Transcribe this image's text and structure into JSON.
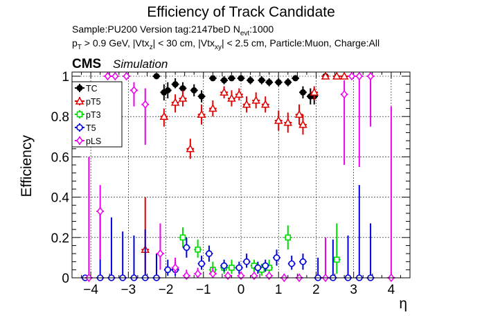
{
  "header": {
    "title": "Efficiency of Track Candidate",
    "line1_prefix": "Sample:PU200   Version tag:2147beD  N",
    "line1_sub": "evt",
    "line1_suffix": ":1000",
    "line2": {
      "p": "p",
      "T": "T",
      "a": " > 0.9 GeV, |Vtx",
      "z": "z",
      "b": "| < 30 cm, |Vtx",
      "xy": "xy",
      "c": "| < 2.5 cm, Particle:Muon, Charge:All"
    }
  },
  "cms": {
    "label": "CMS",
    "sublabel": "Simulation"
  },
  "chart_data": {
    "type": "scatter",
    "title": "Efficiency of Track Candidate",
    "xlabel": "η",
    "ylabel": "Efficiency",
    "xlim": [
      -4.5,
      4.5
    ],
    "ylim": [
      0,
      1.02
    ],
    "x_ticks": [
      -4,
      -3,
      -2,
      -1,
      0,
      1,
      2,
      3,
      4
    ],
    "x_tick_labels": [
      "−4",
      "−3",
      "−2",
      "−1",
      "0",
      "1",
      "2",
      "3",
      "4"
    ],
    "y_ticks": [
      0,
      0.2,
      0.4,
      0.6,
      0.8,
      1
    ],
    "y_tick_labels": [
      "0",
      "0.2",
      "0.4",
      "0.6",
      "0.8",
      "1"
    ],
    "grid": true,
    "legend_position": "top-left",
    "series": [
      {
        "name": "TC",
        "color": "#000000",
        "marker": "circle-filled",
        "points": [
          {
            "x": -2.25,
            "y": 1.0,
            "elo": 0.0,
            "ehi": 0.0
          },
          {
            "x": -2.05,
            "y": 0.92,
            "elo": 0.04,
            "ehi": 0.04
          },
          {
            "x": -1.95,
            "y": 0.93,
            "elo": 0.04,
            "ehi": 0.04
          },
          {
            "x": -1.75,
            "y": 0.96,
            "elo": 0.02,
            "ehi": 0.03
          },
          {
            "x": -1.55,
            "y": 0.94,
            "elo": 0.03,
            "ehi": 0.03
          },
          {
            "x": -1.25,
            "y": 0.93,
            "elo": 0.03,
            "ehi": 0.03
          },
          {
            "x": -1.05,
            "y": 0.9,
            "elo": 0.03,
            "ehi": 0.03
          },
          {
            "x": -0.75,
            "y": 0.99,
            "elo": 0.01,
            "ehi": 0.01
          },
          {
            "x": -0.45,
            "y": 0.98,
            "elo": 0.02,
            "ehi": 0.02
          },
          {
            "x": -0.25,
            "y": 0.99,
            "elo": 0.01,
            "ehi": 0.01
          },
          {
            "x": 0.0,
            "y": 0.99,
            "elo": 0.01,
            "ehi": 0.01
          },
          {
            "x": 0.25,
            "y": 0.98,
            "elo": 0.02,
            "ehi": 0.02
          },
          {
            "x": 0.55,
            "y": 0.98,
            "elo": 0.02,
            "ehi": 0.02
          },
          {
            "x": 0.75,
            "y": 0.97,
            "elo": 0.02,
            "ehi": 0.02
          },
          {
            "x": 1.0,
            "y": 0.97,
            "elo": 0.02,
            "ehi": 0.02
          },
          {
            "x": 1.25,
            "y": 0.97,
            "elo": 0.02,
            "ehi": 0.02
          },
          {
            "x": 1.45,
            "y": 0.99,
            "elo": 0.01,
            "ehi": 0.01
          },
          {
            "x": 1.65,
            "y": 0.92,
            "elo": 0.03,
            "ehi": 0.03
          },
          {
            "x": 1.85,
            "y": 0.9,
            "elo": 0.04,
            "ehi": 0.04
          },
          {
            "x": 1.95,
            "y": 0.9,
            "elo": 0.04,
            "ehi": 0.04
          },
          {
            "x": 2.25,
            "y": 1.0,
            "elo": 0.0,
            "ehi": 0.0
          }
        ]
      },
      {
        "name": "pT5",
        "color": "#e00000",
        "marker": "triangle-open",
        "points": [
          {
            "x": -2.55,
            "y": 0.14,
            "elo": 0.12,
            "ehi": 0.26
          },
          {
            "x": -2.05,
            "y": 0.8,
            "elo": 0.05,
            "ehi": 0.04
          },
          {
            "x": -1.75,
            "y": 0.87,
            "elo": 0.05,
            "ehi": 0.04
          },
          {
            "x": -1.55,
            "y": 0.89,
            "elo": 0.04,
            "ehi": 0.04
          },
          {
            "x": -1.35,
            "y": 0.64,
            "elo": 0.05,
            "ehi": 0.05
          },
          {
            "x": -1.05,
            "y": 0.81,
            "elo": 0.05,
            "ehi": 0.05
          },
          {
            "x": -0.75,
            "y": 0.84,
            "elo": 0.04,
            "ehi": 0.04
          },
          {
            "x": -0.45,
            "y": 0.92,
            "elo": 0.03,
            "ehi": 0.03
          },
          {
            "x": -0.25,
            "y": 0.89,
            "elo": 0.04,
            "ehi": 0.04
          },
          {
            "x": -0.05,
            "y": 0.91,
            "elo": 0.03,
            "ehi": 0.03
          },
          {
            "x": 0.15,
            "y": 0.86,
            "elo": 0.04,
            "ehi": 0.04
          },
          {
            "x": 0.4,
            "y": 0.88,
            "elo": 0.04,
            "ehi": 0.04
          },
          {
            "x": 0.65,
            "y": 0.86,
            "elo": 0.04,
            "ehi": 0.04
          },
          {
            "x": 1.0,
            "y": 0.78,
            "elo": 0.05,
            "ehi": 0.05
          },
          {
            "x": 1.25,
            "y": 0.77,
            "elo": 0.05,
            "ehi": 0.05
          },
          {
            "x": 1.55,
            "y": 0.81,
            "elo": 0.05,
            "ehi": 0.05
          },
          {
            "x": 1.65,
            "y": 0.76,
            "elo": 0.05,
            "ehi": 0.05
          },
          {
            "x": 1.95,
            "y": 0.92,
            "elo": 0.04,
            "ehi": 0.03
          },
          {
            "x": 2.25,
            "y": 1.0,
            "elo": 0.0,
            "ehi": 0.0
          },
          {
            "x": 2.55,
            "y": 1.0,
            "elo": 0.0,
            "ehi": 0.0
          },
          {
            "x": 2.75,
            "y": 1.0,
            "elo": 0.0,
            "ehi": 0.0
          }
        ]
      },
      {
        "name": "pT3",
        "color": "#00dd00",
        "marker": "square-open",
        "points": [
          {
            "x": -1.55,
            "y": 0.2,
            "elo": 0.05,
            "ehi": 0.05
          },
          {
            "x": -1.15,
            "y": 0.14,
            "elo": 0.04,
            "ehi": 0.05
          },
          {
            "x": -0.75,
            "y": 0.04,
            "elo": 0.03,
            "ehi": 0.04
          },
          {
            "x": -0.45,
            "y": 0.05,
            "elo": 0.03,
            "ehi": 0.03
          },
          {
            "x": -0.25,
            "y": 0.05,
            "elo": 0.03,
            "ehi": 0.04
          },
          {
            "x": 0.35,
            "y": 0.06,
            "elo": 0.03,
            "ehi": 0.03
          },
          {
            "x": 0.55,
            "y": 0.04,
            "elo": 0.03,
            "ehi": 0.03
          },
          {
            "x": 0.75,
            "y": 0.05,
            "elo": 0.03,
            "ehi": 0.04
          },
          {
            "x": 1.25,
            "y": 0.2,
            "elo": 0.06,
            "ehi": 0.06
          },
          {
            "x": 2.55,
            "y": 0.09,
            "elo": 0.07,
            "ehi": 0.18
          }
        ]
      },
      {
        "name": "T5",
        "color": "#0000dd",
        "marker": "circle-open",
        "points": [
          {
            "x": -4.15,
            "y": 0.0,
            "elo": 0.0,
            "ehi": 0.0
          },
          {
            "x": -3.75,
            "y": 0.0,
            "elo": 0.0,
            "ehi": 0.35
          },
          {
            "x": -3.45,
            "y": 0.0,
            "elo": 0.0,
            "ehi": 0.3
          },
          {
            "x": -3.15,
            "y": 0.0,
            "elo": 0.0,
            "ehi": 0.23
          },
          {
            "x": -2.85,
            "y": 0.0,
            "elo": 0.0,
            "ehi": 0.21
          },
          {
            "x": -2.55,
            "y": 0.0,
            "elo": 0.0,
            "ehi": 0.24
          },
          {
            "x": -2.25,
            "y": 0.0,
            "elo": 0.0,
            "ehi": 0.12
          },
          {
            "x": -1.95,
            "y": 0.04,
            "elo": 0.03,
            "ehi": 0.05
          },
          {
            "x": -1.75,
            "y": 0.04,
            "elo": 0.03,
            "ehi": 0.04
          },
          {
            "x": -1.45,
            "y": 0.15,
            "elo": 0.05,
            "ehi": 0.05
          },
          {
            "x": -1.05,
            "y": 0.07,
            "elo": 0.03,
            "ehi": 0.04
          },
          {
            "x": -0.85,
            "y": 0.12,
            "elo": 0.04,
            "ehi": 0.04
          },
          {
            "x": -0.45,
            "y": 0.06,
            "elo": 0.03,
            "ehi": 0.03
          },
          {
            "x": -0.05,
            "y": 0.05,
            "elo": 0.03,
            "ehi": 0.03
          },
          {
            "x": 0.15,
            "y": 0.08,
            "elo": 0.03,
            "ehi": 0.04
          },
          {
            "x": 0.45,
            "y": 0.05,
            "elo": 0.03,
            "ehi": 0.03
          },
          {
            "x": 0.65,
            "y": 0.06,
            "elo": 0.03,
            "ehi": 0.03
          },
          {
            "x": 0.95,
            "y": 0.1,
            "elo": 0.04,
            "ehi": 0.04
          },
          {
            "x": 1.35,
            "y": 0.07,
            "elo": 0.03,
            "ehi": 0.04
          },
          {
            "x": 1.65,
            "y": 0.08,
            "elo": 0.04,
            "ehi": 0.04
          },
          {
            "x": 2.05,
            "y": 0.0,
            "elo": 0.0,
            "ehi": 0.1
          },
          {
            "x": 2.45,
            "y": 0.0,
            "elo": 0.0,
            "ehi": 0.19
          },
          {
            "x": 2.85,
            "y": 0.0,
            "elo": 0.0,
            "ehi": 0.21
          },
          {
            "x": 3.15,
            "y": 0.0,
            "elo": 0.0,
            "ehi": 0.46
          },
          {
            "x": 3.45,
            "y": 0.0,
            "elo": 0.0,
            "ehi": 0.27
          }
        ]
      },
      {
        "name": "pLS",
        "color": "#ee00ee",
        "marker": "diamond-open",
        "points": [
          {
            "x": -4.05,
            "y": 0.0,
            "elo": 0.0,
            "ehi": 0.6
          },
          {
            "x": -3.75,
            "y": 0.33,
            "elo": 0.24,
            "ehi": 0.13
          },
          {
            "x": -3.55,
            "y": 1.0,
            "elo": 0.0,
            "ehi": 0.0
          },
          {
            "x": -3.35,
            "y": 1.0,
            "elo": 0.0,
            "ehi": 0.0
          },
          {
            "x": -3.05,
            "y": 1.0,
            "elo": 0.0,
            "ehi": 0.0
          },
          {
            "x": -2.85,
            "y": 0.93,
            "elo": 0.08,
            "ehi": 0.04
          },
          {
            "x": -2.55,
            "y": 0.86,
            "elo": 0.2,
            "ehi": 0.08
          },
          {
            "x": -2.15,
            "y": 0.12,
            "elo": 0.08,
            "ehi": 0.15
          },
          {
            "x": -1.75,
            "y": 0.05,
            "elo": 0.03,
            "ehi": 0.05
          },
          {
            "x": -1.45,
            "y": 0.01,
            "elo": 0.01,
            "ehi": 0.03
          },
          {
            "x": -1.15,
            "y": 0.02,
            "elo": 0.01,
            "ehi": 0.03
          },
          {
            "x": -0.75,
            "y": 0.02,
            "elo": 0.01,
            "ehi": 0.03
          },
          {
            "x": -0.35,
            "y": 0.01,
            "elo": 0.01,
            "ehi": 0.02
          },
          {
            "x": 0.0,
            "y": 0.01,
            "elo": 0.01,
            "ehi": 0.02
          },
          {
            "x": 0.35,
            "y": 0.01,
            "elo": 0.01,
            "ehi": 0.02
          },
          {
            "x": 0.75,
            "y": 0.01,
            "elo": 0.01,
            "ehi": 0.02
          },
          {
            "x": 1.15,
            "y": 0.0,
            "elo": 0.0,
            "ehi": 0.02
          },
          {
            "x": 1.55,
            "y": 0.0,
            "elo": 0.0,
            "ehi": 0.02
          },
          {
            "x": 2.25,
            "y": 0.0,
            "elo": 0.0,
            "ehi": 0.2
          },
          {
            "x": 2.75,
            "y": 0.91,
            "elo": 0.35,
            "ehi": 0.07
          },
          {
            "x": 2.95,
            "y": 1.0,
            "elo": 0.0,
            "ehi": 0.0
          },
          {
            "x": 3.15,
            "y": 1.0,
            "elo": 0.45,
            "ehi": 0.0
          },
          {
            "x": 3.45,
            "y": 1.0,
            "elo": 0.25,
            "ehi": 0.0
          },
          {
            "x": 4.0,
            "y": 0.0,
            "elo": 0.0,
            "ehi": 0.85
          }
        ]
      }
    ]
  }
}
